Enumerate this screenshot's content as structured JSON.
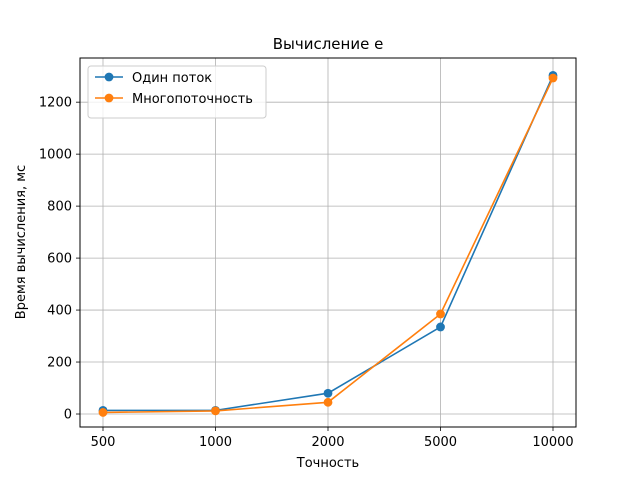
{
  "chart_data": {
    "type": "line",
    "title": "Вычисление e",
    "xlabel": "Точность",
    "ylabel": "Время вычисления, мс",
    "categories": [
      "500",
      "1000",
      "2000",
      "5000",
      "10000"
    ],
    "ylim": [
      -50,
      1370
    ],
    "yticks": [
      0,
      200,
      400,
      600,
      800,
      1000,
      1200
    ],
    "grid": true,
    "legend_position": "upper-left",
    "series": [
      {
        "name": "Один поток",
        "color": "#1f77b4",
        "marker": "circle",
        "values": [
          14,
          14,
          80,
          335,
          1303
        ]
      },
      {
        "name": "Многопоточность",
        "color": "#ff7f0e",
        "marker": "circle",
        "values": [
          6,
          12,
          45,
          385,
          1293
        ]
      }
    ]
  }
}
